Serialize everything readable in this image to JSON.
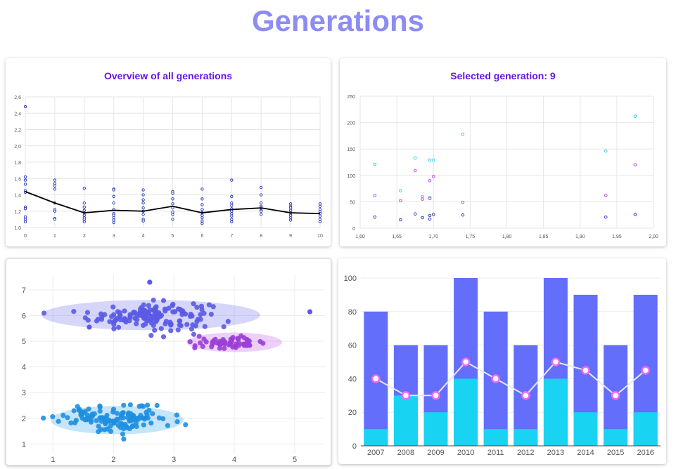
{
  "page_title": "Generations",
  "colors": {
    "title": "#8c8cf3",
    "panel_title": "#6a14e0",
    "marker_blue": "#1f2db3",
    "marker_cyan": "#22c8e6",
    "marker_purple": "#b040e0",
    "cluster_blue": "#5a5ae6",
    "cluster_purple": "#9b3fd6",
    "cluster_lightblue": "#1e8fe0",
    "bar_total": "#636efa",
    "bar_part": "#19d3f3",
    "line_marker": "#ec6cf0"
  },
  "chart_data": [
    {
      "type": "line",
      "title": "Overview of all generations",
      "x_ticks": [
        "0",
        "1",
        "2",
        "3",
        "4",
        "5",
        "6",
        "7",
        "8",
        "9",
        "10"
      ],
      "y_ticks": [
        "1,0",
        "1,2",
        "1,4",
        "1,6",
        "1,8",
        "2,0",
        "2,2",
        "2,4",
        "2,6"
      ],
      "xlim": [
        0,
        10
      ],
      "ylim": [
        1.0,
        2.6
      ],
      "grid": true,
      "mean_line": {
        "x": [
          0,
          1,
          2,
          3,
          4,
          5,
          6,
          7,
          8,
          9,
          10
        ],
        "y": [
          1.44,
          1.3,
          1.18,
          1.21,
          1.2,
          1.26,
          1.18,
          1.22,
          1.24,
          1.18,
          1.17
        ]
      },
      "scatter": [
        {
          "x": 0,
          "y": [
            2.48,
            1.62,
            1.58,
            1.53,
            1.45,
            1.43,
            1.25,
            1.23,
            1.13,
            1.1,
            1.07
          ]
        },
        {
          "x": 1,
          "y": [
            1.58,
            1.54,
            1.51,
            1.47,
            1.3,
            1.22,
            1.2,
            1.11,
            1.1
          ]
        },
        {
          "x": 2,
          "y": [
            1.48,
            1.3,
            1.25,
            1.21,
            1.18,
            1.15,
            1.12,
            1.1,
            1.07
          ]
        },
        {
          "x": 3,
          "y": [
            1.47,
            1.46,
            1.38,
            1.3,
            1.22,
            1.17,
            1.15,
            1.12,
            1.09,
            1.06
          ]
        },
        {
          "x": 4,
          "y": [
            1.46,
            1.4,
            1.34,
            1.3,
            1.24,
            1.2,
            1.16,
            1.1,
            1.08
          ]
        },
        {
          "x": 5,
          "y": [
            1.44,
            1.42,
            1.35,
            1.29,
            1.24,
            1.19,
            1.16,
            1.1
          ]
        },
        {
          "x": 6,
          "y": [
            1.47,
            1.35,
            1.28,
            1.22,
            1.18,
            1.15,
            1.12,
            1.08,
            1.05
          ]
        },
        {
          "x": 7,
          "y": [
            1.58,
            1.38,
            1.3,
            1.27,
            1.23,
            1.2,
            1.17,
            1.14,
            1.1,
            1.07
          ]
        },
        {
          "x": 8,
          "y": [
            1.49,
            1.4,
            1.3,
            1.26,
            1.24,
            1.21,
            1.2,
            1.16
          ]
        },
        {
          "x": 9,
          "y": [
            1.29,
            1.26,
            1.24,
            1.21,
            1.18,
            1.15,
            1.12,
            1.09
          ]
        },
        {
          "x": 10,
          "y": [
            1.29,
            1.26,
            1.22,
            1.19,
            1.17,
            1.14,
            1.1,
            1.07
          ]
        }
      ]
    },
    {
      "type": "scatter",
      "title": "Selected generation: 9",
      "x_ticks": [
        "1,60",
        "1,65",
        "1,70",
        "1,75",
        "1,80",
        "1,85",
        "1,90",
        "1,95",
        "2,00"
      ],
      "y_ticks": [
        "0",
        "50",
        "100",
        "150",
        "200",
        "250"
      ],
      "xlim": [
        1.6,
        2.0
      ],
      "ylim": [
        0,
        250
      ],
      "grid": true,
      "series": [
        {
          "color": "cyan",
          "points": [
            [
              1.62,
              121
            ],
            [
              1.655,
              71
            ],
            [
              1.675,
              133
            ],
            [
              1.685,
              60
            ],
            [
              1.695,
              129
            ],
            [
              1.7,
              129
            ],
            [
              1.695,
              58
            ],
            [
              1.74,
              178
            ],
            [
              1.935,
              146
            ],
            [
              1.975,
              212
            ]
          ]
        },
        {
          "color": "purple",
          "points": [
            [
              1.62,
              62
            ],
            [
              1.655,
              52
            ],
            [
              1.675,
              109
            ],
            [
              1.685,
              55
            ],
            [
              1.695,
              90
            ],
            [
              1.7,
              98
            ],
            [
              1.695,
              56
            ],
            [
              1.74,
              49
            ],
            [
              1.935,
              62
            ],
            [
              1.975,
              120
            ]
          ]
        },
        {
          "color": "blue",
          "points": [
            [
              1.62,
              21
            ],
            [
              1.655,
              16
            ],
            [
              1.675,
              27
            ],
            [
              1.685,
              20
            ],
            [
              1.695,
              24
            ],
            [
              1.7,
              26
            ],
            [
              1.695,
              17
            ],
            [
              1.74,
              25
            ],
            [
              1.935,
              21
            ],
            [
              1.975,
              26
            ]
          ]
        }
      ]
    },
    {
      "type": "scatter",
      "x_ticks": [
        "1",
        "2",
        "3",
        "4",
        "5"
      ],
      "y_ticks": [
        "1",
        "2",
        "3",
        "4",
        "5",
        "6",
        "7"
      ],
      "xlim": [
        0.6,
        5.5
      ],
      "ylim": [
        0.6,
        7.6
      ],
      "grid": true,
      "clusters": [
        {
          "color": "blue",
          "center": [
            2.6,
            6.0
          ],
          "n": 150,
          "spread": [
            0.5,
            0.27
          ],
          "ellipse": {
            "center": [
              2.62,
              6.02
            ],
            "rx": 1.81,
            "ry": 0.59
          },
          "outliers": [
            [
              1.6,
              5.55
            ],
            [
              5.25,
              6.15
            ],
            [
              2.6,
              7.3
            ]
          ]
        },
        {
          "color": "purple",
          "center": [
            3.95,
            4.95
          ],
          "n": 55,
          "spread": [
            0.28,
            0.11
          ],
          "ellipse": {
            "center": [
              4.0,
              4.96
            ],
            "rx": 0.79,
            "ry": 0.38
          }
        },
        {
          "color": "lightblue",
          "center": [
            2.05,
            2.0
          ],
          "n": 130,
          "spread": [
            0.45,
            0.25
          ],
          "ellipse": {
            "center": [
              2.06,
              1.93
            ],
            "rx": 1.1,
            "ry": 0.55
          }
        }
      ]
    },
    {
      "type": "bar",
      "categories": [
        "2007",
        "2008",
        "2009",
        "2010",
        "2011",
        "2012",
        "2013",
        "2014",
        "2015",
        "2016"
      ],
      "y_ticks": [
        "0",
        "20",
        "40",
        "60",
        "80",
        "100"
      ],
      "ylim": [
        0,
        100
      ],
      "grid": true,
      "series": [
        {
          "values": [
            80,
            60,
            60,
            100,
            80,
            60,
            100,
            90,
            60,
            90
          ]
        },
        {
          "values": [
            10,
            30,
            20,
            40,
            10,
            10,
            40,
            20,
            10,
            20
          ]
        },
        {
          "type": "line",
          "values": [
            40,
            30,
            30,
            50,
            40,
            30,
            50,
            45,
            30,
            45
          ]
        }
      ]
    }
  ]
}
